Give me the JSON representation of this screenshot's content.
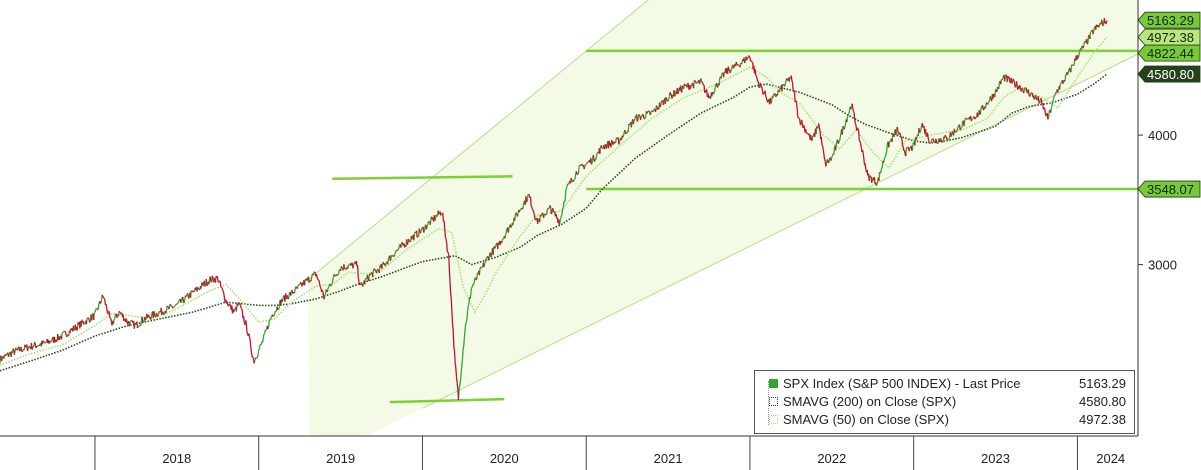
{
  "chart_data": {
    "type": "line",
    "title": "",
    "series_main": {
      "name": "SPX Index (S&P 500 INDEX) - Last Price",
      "last_value": "5163.29",
      "color": "#2fa82f",
      "anchors": [
        [
          2017.42,
          2430
        ],
        [
          2017.5,
          2470
        ],
        [
          2017.6,
          2500
        ],
        [
          2017.7,
          2520
        ],
        [
          2017.8,
          2560
        ],
        [
          2017.9,
          2620
        ],
        [
          2018.0,
          2680
        ],
        [
          2018.05,
          2800
        ],
        [
          2018.1,
          2630
        ],
        [
          2018.15,
          2700
        ],
        [
          2018.2,
          2640
        ],
        [
          2018.25,
          2620
        ],
        [
          2018.3,
          2660
        ],
        [
          2018.4,
          2700
        ],
        [
          2018.5,
          2740
        ],
        [
          2018.6,
          2820
        ],
        [
          2018.7,
          2900
        ],
        [
          2018.75,
          2910
        ],
        [
          2018.8,
          2770
        ],
        [
          2018.85,
          2700
        ],
        [
          2018.88,
          2750
        ],
        [
          2018.93,
          2600
        ],
        [
          2018.97,
          2420
        ],
        [
          2019.02,
          2520
        ],
        [
          2019.08,
          2680
        ],
        [
          2019.15,
          2780
        ],
        [
          2019.22,
          2830
        ],
        [
          2019.3,
          2900
        ],
        [
          2019.35,
          2940
        ],
        [
          2019.4,
          2790
        ],
        [
          2019.45,
          2900
        ],
        [
          2019.5,
          2980
        ],
        [
          2019.6,
          3000
        ],
        [
          2019.62,
          2850
        ],
        [
          2019.68,
          2930
        ],
        [
          2019.75,
          2980
        ],
        [
          2019.83,
          3080
        ],
        [
          2019.92,
          3170
        ],
        [
          2020.0,
          3240
        ],
        [
          2020.05,
          3300
        ],
        [
          2020.12,
          3380
        ],
        [
          2020.16,
          3050
        ],
        [
          2020.2,
          2400
        ],
        [
          2020.22,
          2230
        ],
        [
          2020.26,
          2600
        ],
        [
          2020.3,
          2850
        ],
        [
          2020.4,
          3050
        ],
        [
          2020.46,
          3130
        ],
        [
          2020.5,
          3200
        ],
        [
          2020.6,
          3400
        ],
        [
          2020.65,
          3500
        ],
        [
          2020.7,
          3300
        ],
        [
          2020.78,
          3400
        ],
        [
          2020.84,
          3300
        ],
        [
          2020.88,
          3550
        ],
        [
          2020.95,
          3700
        ],
        [
          2021.05,
          3800
        ],
        [
          2021.1,
          3900
        ],
        [
          2021.2,
          3950
        ],
        [
          2021.3,
          4150
        ],
        [
          2021.4,
          4200
        ],
        [
          2021.5,
          4350
        ],
        [
          2021.6,
          4450
        ],
        [
          2021.7,
          4500
        ],
        [
          2021.75,
          4350
        ],
        [
          2021.85,
          4600
        ],
        [
          2021.95,
          4700
        ],
        [
          2022.0,
          4770
        ],
        [
          2022.05,
          4500
        ],
        [
          2022.12,
          4300
        ],
        [
          2022.2,
          4450
        ],
        [
          2022.25,
          4550
        ],
        [
          2022.3,
          4150
        ],
        [
          2022.38,
          3950
        ],
        [
          2022.42,
          4100
        ],
        [
          2022.46,
          3750
        ],
        [
          2022.5,
          3800
        ],
        [
          2022.58,
          4100
        ],
        [
          2022.62,
          4280
        ],
        [
          2022.68,
          3900
        ],
        [
          2022.72,
          3650
        ],
        [
          2022.78,
          3600
        ],
        [
          2022.84,
          3900
        ],
        [
          2022.9,
          4050
        ],
        [
          2022.95,
          3850
        ],
        [
          2023.0,
          3900
        ],
        [
          2023.05,
          4100
        ],
        [
          2023.1,
          3950
        ],
        [
          2023.2,
          3970
        ],
        [
          2023.3,
          4100
        ],
        [
          2023.4,
          4200
        ],
        [
          2023.5,
          4400
        ],
        [
          2023.55,
          4550
        ],
        [
          2023.6,
          4500
        ],
        [
          2023.7,
          4400
        ],
        [
          2023.78,
          4300
        ],
        [
          2023.82,
          4150
        ],
        [
          2023.87,
          4400
        ],
        [
          2023.95,
          4600
        ],
        [
          2024.0,
          4770
        ],
        [
          2024.05,
          4900
        ],
        [
          2024.1,
          5050
        ],
        [
          2024.15,
          5130
        ],
        [
          2024.18,
          5163
        ]
      ]
    },
    "series_sma200": {
      "name": "SMAVG (200)  on Close (SPX)",
      "last_value": "4580.80",
      "color": "#2a4a1a",
      "anchors": [
        [
          2017.42,
          2370
        ],
        [
          2017.6,
          2420
        ],
        [
          2017.8,
          2480
        ],
        [
          2018.0,
          2560
        ],
        [
          2018.2,
          2620
        ],
        [
          2018.4,
          2660
        ],
        [
          2018.6,
          2700
        ],
        [
          2018.8,
          2760
        ],
        [
          2019.0,
          2740
        ],
        [
          2019.1,
          2740
        ],
        [
          2019.2,
          2750
        ],
        [
          2019.35,
          2780
        ],
        [
          2019.5,
          2830
        ],
        [
          2019.6,
          2870
        ],
        [
          2019.75,
          2920
        ],
        [
          2019.9,
          2980
        ],
        [
          2020.0,
          3020
        ],
        [
          2020.2,
          3060
        ],
        [
          2020.3,
          3000
        ],
        [
          2020.45,
          3050
        ],
        [
          2020.6,
          3120
        ],
        [
          2020.7,
          3200
        ],
        [
          2020.85,
          3280
        ],
        [
          2021.0,
          3400
        ],
        [
          2021.1,
          3550
        ],
        [
          2021.3,
          3800
        ],
        [
          2021.5,
          4000
        ],
        [
          2021.7,
          4200
        ],
        [
          2021.9,
          4350
        ],
        [
          2022.0,
          4450
        ],
        [
          2022.1,
          4480
        ],
        [
          2022.2,
          4440
        ],
        [
          2022.3,
          4400
        ],
        [
          2022.5,
          4280
        ],
        [
          2022.6,
          4180
        ],
        [
          2022.7,
          4100
        ],
        [
          2022.85,
          4020
        ],
        [
          2023.0,
          3950
        ],
        [
          2023.1,
          3930
        ],
        [
          2023.2,
          3950
        ],
        [
          2023.3,
          3980
        ],
        [
          2023.5,
          4080
        ],
        [
          2023.6,
          4200
        ],
        [
          2023.7,
          4260
        ],
        [
          2023.85,
          4300
        ],
        [
          2024.0,
          4380
        ],
        [
          2024.1,
          4480
        ],
        [
          2024.18,
          4580.8
        ]
      ]
    },
    "series_sma50": {
      "name": "SMAVG (50)  on Close (SPX)",
      "last_value": "4972.38",
      "color": "#a8e070",
      "anchors": [
        [
          2017.42,
          2400
        ],
        [
          2017.6,
          2460
        ],
        [
          2017.8,
          2510
        ],
        [
          2018.0,
          2620
        ],
        [
          2018.1,
          2690
        ],
        [
          2018.2,
          2680
        ],
        [
          2018.35,
          2660
        ],
        [
          2018.5,
          2720
        ],
        [
          2018.7,
          2830
        ],
        [
          2018.8,
          2870
        ],
        [
          2018.9,
          2760
        ],
        [
          2019.0,
          2640
        ],
        [
          2019.1,
          2660
        ],
        [
          2019.2,
          2760
        ],
        [
          2019.35,
          2860
        ],
        [
          2019.45,
          2870
        ],
        [
          2019.55,
          2950
        ],
        [
          2019.65,
          2940
        ],
        [
          2019.75,
          2960
        ],
        [
          2019.9,
          3100
        ],
        [
          2020.1,
          3250
        ],
        [
          2020.18,
          3220
        ],
        [
          2020.25,
          2850
        ],
        [
          2020.32,
          2700
        ],
        [
          2020.38,
          2800
        ],
        [
          2020.45,
          2950
        ],
        [
          2020.6,
          3200
        ],
        [
          2020.7,
          3350
        ],
        [
          2020.85,
          3380
        ],
        [
          2021.0,
          3650
        ],
        [
          2021.2,
          3900
        ],
        [
          2021.4,
          4150
        ],
        [
          2021.6,
          4350
        ],
        [
          2021.8,
          4480
        ],
        [
          2022.0,
          4650
        ],
        [
          2022.1,
          4550
        ],
        [
          2022.2,
          4380
        ],
        [
          2022.3,
          4300
        ],
        [
          2022.45,
          4000
        ],
        [
          2022.55,
          3880
        ],
        [
          2022.65,
          4050
        ],
        [
          2022.75,
          3850
        ],
        [
          2022.85,
          3720
        ],
        [
          2022.95,
          3950
        ],
        [
          2023.1,
          4000
        ],
        [
          2023.3,
          4050
        ],
        [
          2023.45,
          4150
        ],
        [
          2023.55,
          4350
        ],
        [
          2023.65,
          4450
        ],
        [
          2023.78,
          4350
        ],
        [
          2023.88,
          4250
        ],
        [
          2024.0,
          4550
        ],
        [
          2024.1,
          4800
        ],
        [
          2024.18,
          4972.38
        ]
      ]
    },
    "levels": [
      {
        "value": 4822.44,
        "label": "4822.44",
        "x_start": 2021.0
      },
      {
        "value": 3548.07,
        "label": "3548.07",
        "x_start": 2021.0
      }
    ],
    "annotation_segments": [
      {
        "x1": 2019.45,
        "y1": 3630,
        "x2": 2020.55,
        "y2": 3650
      },
      {
        "x1": 2019.8,
        "y1": 2210,
        "x2": 2020.5,
        "y2": 2225
      }
    ],
    "channel": {
      "upper": [
        [
          2019.3,
          2900
        ],
        [
          2021.5,
          5600
        ]
      ],
      "lower": [
        [
          2020.0,
          2180
        ],
        [
          2024.3,
          4730
        ]
      ],
      "fill_start_x": 2019.3
    },
    "x_axis": {
      "range": [
        2017.42,
        2024.37
      ],
      "ticks": [
        {
          "label": "2018",
          "value": 2018.0
        },
        {
          "label": "2019",
          "value": 2019.0
        },
        {
          "label": "2020",
          "value": 2020.0
        },
        {
          "label": "2021",
          "value": 2021.0
        },
        {
          "label": "2022",
          "value": 2022.0
        },
        {
          "label": "2023",
          "value": 2023.0
        },
        {
          "label": "2024",
          "value": 2024.0
        }
      ]
    },
    "y_axis": {
      "scale": "log",
      "range": [
        2050,
        5400
      ],
      "ticks": [
        {
          "label": "3000",
          "value": 3000
        },
        {
          "label": "4000",
          "value": 4000
        }
      ]
    },
    "grid": false,
    "legend_position": "bottom-right",
    "colors": {
      "price_up": "#2fa82f",
      "price_down": "#c8102e",
      "channel_fill": "#f3fbe6",
      "channel_line": "#b8e08a",
      "level_line": "#7dcf32",
      "badge_main": "#79c83a",
      "badge_sma200": "#24431a",
      "badge_sma50": "#b9e680"
    }
  }
}
